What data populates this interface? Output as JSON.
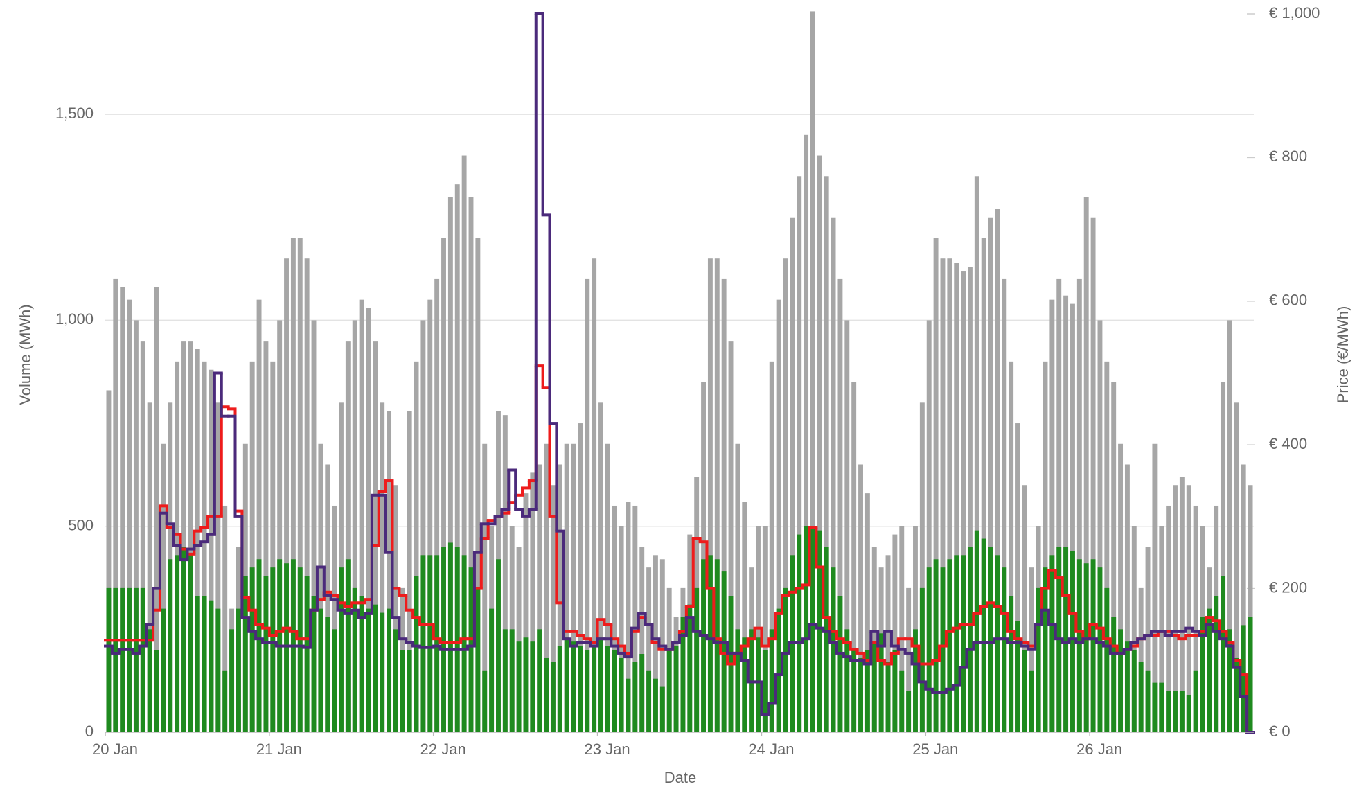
{
  "chart_data": {
    "type": "combo",
    "x_label": "Date",
    "y_label": "Volume (MWh)",
    "y2_label": "Price (€/MWh)",
    "categories": [
      "20 Jan",
      null,
      null,
      null,
      null,
      null,
      null,
      null,
      null,
      null,
      null,
      null,
      null,
      null,
      null,
      null,
      null,
      null,
      null,
      null,
      null,
      null,
      null,
      null,
      "21 Jan",
      null,
      null,
      null,
      null,
      null,
      null,
      null,
      null,
      null,
      null,
      null,
      null,
      null,
      null,
      null,
      null,
      null,
      null,
      null,
      null,
      null,
      null,
      null,
      "22 Jan",
      null,
      null,
      null,
      null,
      null,
      null,
      null,
      null,
      null,
      null,
      null,
      null,
      null,
      null,
      null,
      null,
      null,
      null,
      null,
      null,
      null,
      null,
      null,
      "23 Jan",
      null,
      null,
      null,
      null,
      null,
      null,
      null,
      null,
      null,
      null,
      null,
      null,
      null,
      null,
      null,
      null,
      null,
      null,
      null,
      null,
      null,
      null,
      null,
      "24 Jan",
      null,
      null,
      null,
      null,
      null,
      null,
      null,
      null,
      null,
      null,
      null,
      null,
      null,
      null,
      null,
      null,
      null,
      null,
      null,
      null,
      null,
      null,
      null,
      "25 Jan",
      null,
      null,
      null,
      null,
      null,
      null,
      null,
      null,
      null,
      null,
      null,
      null,
      null,
      null,
      null,
      null,
      null,
      null,
      null,
      null,
      null,
      null,
      null,
      "26 Jan",
      null,
      null,
      null,
      null,
      null,
      null,
      null,
      null,
      null,
      null,
      null,
      null,
      null,
      null,
      null,
      null,
      null,
      null,
      null,
      null,
      null,
      null,
      null
    ],
    "ylim": [
      0,
      1744
    ],
    "yticks": [
      0,
      500,
      {
        "value": 1000,
        "label": "1,000"
      },
      {
        "value": 1500,
        "label": "1,500"
      }
    ],
    "y2lim": [
      0,
      1000
    ],
    "y2ticks": [
      {
        "value": 0,
        "label": "€ 0"
      },
      {
        "value": 200,
        "label": "€ 200"
      },
      {
        "value": 400,
        "label": "€ 400"
      },
      {
        "value": 600,
        "label": "€ 600"
      },
      {
        "value": 800,
        "label": "€ 800"
      },
      {
        "value": 1000,
        "label": "€ 1,000"
      }
    ],
    "grid": true,
    "series": [
      {
        "type": "bar",
        "color": "#a6a6a6",
        "values": [
          830,
          1100,
          1080,
          1050,
          1000,
          950,
          800,
          1080,
          700,
          800,
          900,
          950,
          950,
          930,
          900,
          880,
          800,
          550,
          300,
          450,
          700,
          900,
          1050,
          950,
          900,
          1000,
          1150,
          1200,
          1200,
          1150,
          1000,
          700,
          650,
          550,
          800,
          950,
          1000,
          1050,
          1030,
          950,
          800,
          780,
          600,
          350,
          780,
          900,
          1000,
          1050,
          1100,
          1200,
          1300,
          1330,
          1400,
          1300,
          1200,
          700,
          500,
          780,
          770,
          500,
          450,
          580,
          630,
          650,
          700,
          600,
          650,
          700,
          700,
          750,
          1100,
          1150,
          800,
          700,
          550,
          500,
          560,
          550,
          450,
          400,
          430,
          420,
          350,
          280,
          350,
          480,
          620,
          850,
          1150,
          1150,
          1100,
          950,
          700,
          560,
          400,
          500,
          500,
          900,
          1050,
          1150,
          1250,
          1350,
          1450,
          1750,
          1400,
          1350,
          1250,
          1100,
          1000,
          850,
          650,
          580,
          450,
          400,
          430,
          480,
          500,
          350,
          500,
          800,
          1000,
          1200,
          1150,
          1150,
          1140,
          1120,
          1130,
          1350,
          1200,
          1250,
          1270,
          1100,
          900,
          750,
          600,
          400,
          500,
          900,
          1050,
          1100,
          1060,
          1040,
          1100,
          1300,
          1250,
          1000,
          900,
          850,
          700,
          650,
          500,
          350,
          450,
          700,
          500,
          550,
          600,
          620,
          600,
          550,
          500,
          400,
          550,
          850,
          1000,
          800,
          650,
          600
        ]
      },
      {
        "type": "bar",
        "color": "#1f8a1f",
        "values": [
          350,
          350,
          350,
          350,
          350,
          350,
          250,
          200,
          300,
          420,
          430,
          450,
          430,
          330,
          330,
          320,
          300,
          150,
          250,
          300,
          380,
          400,
          420,
          380,
          400,
          420,
          410,
          420,
          400,
          380,
          330,
          300,
          280,
          250,
          400,
          420,
          350,
          330,
          300,
          310,
          290,
          300,
          250,
          200,
          200,
          380,
          430,
          430,
          430,
          450,
          460,
          450,
          430,
          400,
          350,
          150,
          300,
          420,
          250,
          250,
          220,
          230,
          220,
          250,
          180,
          170,
          210,
          230,
          220,
          210,
          200,
          210,
          230,
          210,
          200,
          180,
          130,
          170,
          190,
          150,
          130,
          110,
          200,
          210,
          280,
          310,
          350,
          420,
          430,
          420,
          390,
          330,
          250,
          230,
          250,
          230,
          200,
          250,
          300,
          350,
          430,
          480,
          500,
          500,
          490,
          450,
          400,
          330,
          250,
          200,
          180,
          200,
          220,
          240,
          170,
          200,
          150,
          100,
          250,
          350,
          400,
          420,
          400,
          420,
          430,
          430,
          450,
          490,
          470,
          450,
          430,
          400,
          330,
          270,
          200,
          150,
          350,
          400,
          430,
          450,
          450,
          440,
          420,
          410,
          420,
          400,
          350,
          280,
          250,
          220,
          200,
          170,
          150,
          120,
          120,
          100,
          100,
          100,
          90,
          150,
          280,
          300,
          330,
          380,
          250,
          180,
          260,
          280
        ]
      },
      {
        "type": "line",
        "axis": "y2",
        "color": "#ee1c1c",
        "values": [
          128,
          128,
          128,
          128,
          128,
          128,
          128,
          170,
          315,
          285,
          275,
          255,
          248,
          280,
          285,
          300,
          300,
          453,
          450,
          308,
          188,
          170,
          150,
          145,
          135,
          140,
          145,
          140,
          130,
          130,
          170,
          185,
          195,
          190,
          180,
          175,
          180,
          180,
          185,
          260,
          335,
          350,
          200,
          190,
          170,
          160,
          150,
          150,
          130,
          125,
          125,
          125,
          130,
          130,
          200,
          270,
          295,
          300,
          305,
          320,
          330,
          340,
          350,
          510,
          480,
          300,
          180,
          140,
          140,
          135,
          130,
          125,
          157,
          150,
          130,
          120,
          110,
          140,
          160,
          150,
          125,
          115,
          115,
          125,
          140,
          175,
          270,
          265,
          200,
          130,
          110,
          95,
          110,
          120,
          130,
          145,
          120,
          130,
          165,
          190,
          195,
          200,
          205,
          285,
          230,
          160,
          140,
          130,
          125,
          115,
          110,
          100,
          125,
          100,
          95,
          110,
          130,
          130,
          120,
          95,
          95,
          100,
          120,
          140,
          145,
          150,
          150,
          165,
          175,
          180,
          175,
          165,
          140,
          130,
          125,
          120,
          150,
          200,
          225,
          215,
          190,
          165,
          140,
          130,
          150,
          145,
          130,
          120,
          110,
          115,
          120,
          130,
          135,
          135,
          140,
          140,
          135,
          130,
          135,
          135,
          140,
          160,
          155,
          140,
          125,
          100,
          80,
          0
        ]
      },
      {
        "type": "line",
        "axis": "y2",
        "color": "#4b2a7b",
        "values": [
          120,
          110,
          115,
          115,
          110,
          120,
          150,
          200,
          305,
          290,
          260,
          240,
          255,
          260,
          265,
          275,
          500,
          440,
          440,
          300,
          160,
          140,
          130,
          125,
          125,
          120,
          120,
          120,
          120,
          118,
          170,
          230,
          190,
          185,
          170,
          165,
          170,
          160,
          165,
          330,
          330,
          250,
          160,
          130,
          125,
          120,
          118,
          118,
          120,
          115,
          115,
          115,
          115,
          120,
          250,
          290,
          290,
          300,
          310,
          365,
          310,
          300,
          310,
          1000,
          720,
          430,
          280,
          130,
          120,
          125,
          125,
          120,
          130,
          130,
          120,
          110,
          105,
          145,
          165,
          150,
          130,
          120,
          115,
          125,
          135,
          160,
          140,
          135,
          130,
          125,
          125,
          110,
          110,
          100,
          70,
          70,
          25,
          40,
          80,
          110,
          125,
          125,
          130,
          150,
          145,
          140,
          125,
          110,
          105,
          100,
          100,
          95,
          140,
          120,
          140,
          120,
          115,
          110,
          95,
          70,
          60,
          55,
          55,
          60,
          65,
          90,
          115,
          125,
          125,
          125,
          130,
          130,
          125,
          125,
          120,
          115,
          150,
          170,
          150,
          130,
          125,
          130,
          125,
          130,
          130,
          125,
          120,
          110,
          110,
          115,
          125,
          130,
          135,
          140,
          140,
          135,
          140,
          140,
          145,
          140,
          135,
          150,
          140,
          130,
          120,
          90,
          50,
          0
        ]
      }
    ]
  }
}
